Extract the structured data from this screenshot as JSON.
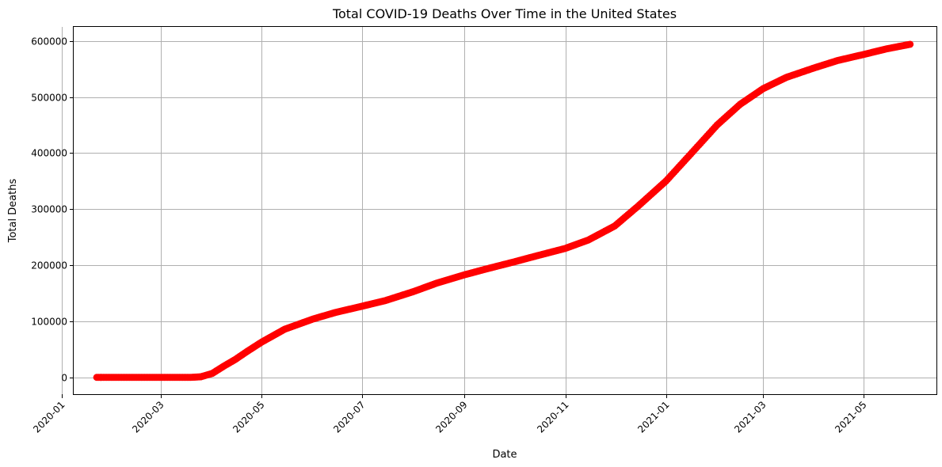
{
  "chart_data": {
    "type": "scatter",
    "title": "Total COVID-19 Deaths Over Time in the United States",
    "xlabel": "Date",
    "ylabel": "Total Deaths",
    "x_range": [
      "2020-01-08",
      "2021-06-14"
    ],
    "ylim": [
      -30000,
      625000
    ],
    "grid": true,
    "point_color": "#ff0000",
    "x_ticks": [
      "2020-01",
      "2020-03",
      "2020-05",
      "2020-07",
      "2020-09",
      "2020-11",
      "2021-01",
      "2021-03",
      "2021-05"
    ],
    "y_ticks": [
      0,
      100000,
      200000,
      300000,
      400000,
      500000,
      600000
    ],
    "series": [
      {
        "keypoints": [
          [
            "2020-01-22",
            0
          ],
          [
            "2020-03-19",
            0
          ],
          [
            "2020-03-25",
            1000
          ],
          [
            "2020-04-01",
            7000
          ],
          [
            "2020-04-08",
            20000
          ],
          [
            "2020-04-15",
            32000
          ],
          [
            "2020-04-22",
            46000
          ],
          [
            "2020-05-01",
            63000
          ],
          [
            "2020-05-15",
            86000
          ],
          [
            "2020-06-01",
            104000
          ],
          [
            "2020-06-15",
            116000
          ],
          [
            "2020-07-01",
            127000
          ],
          [
            "2020-07-15",
            137000
          ],
          [
            "2020-08-01",
            153000
          ],
          [
            "2020-08-15",
            168000
          ],
          [
            "2020-09-01",
            183000
          ],
          [
            "2020-09-15",
            194000
          ],
          [
            "2020-10-01",
            206000
          ],
          [
            "2020-10-15",
            217000
          ],
          [
            "2020-11-01",
            230000
          ],
          [
            "2020-11-15",
            245000
          ],
          [
            "2020-12-01",
            270000
          ],
          [
            "2020-12-15",
            305000
          ],
          [
            "2021-01-01",
            350000
          ],
          [
            "2021-01-15",
            395000
          ],
          [
            "2021-02-01",
            450000
          ],
          [
            "2021-02-15",
            487000
          ],
          [
            "2021-03-01",
            515000
          ],
          [
            "2021-03-15",
            535000
          ],
          [
            "2021-04-01",
            552000
          ],
          [
            "2021-04-15",
            565000
          ],
          [
            "2021-05-01",
            576000
          ],
          [
            "2021-05-15",
            586000
          ],
          [
            "2021-05-29",
            594000
          ]
        ]
      }
    ]
  }
}
